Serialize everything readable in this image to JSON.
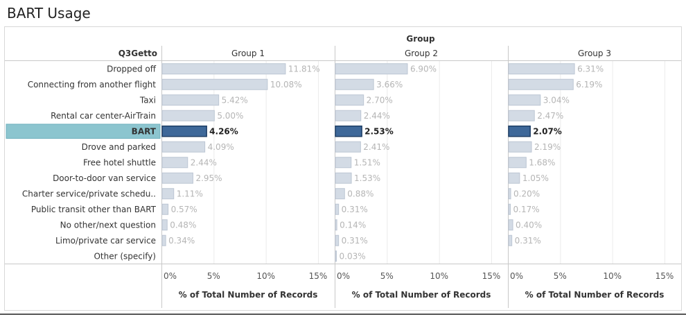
{
  "title": "BART Usage",
  "column_header": "Group",
  "row_header": "Q3Getto",
  "highlighted_category": "BART",
  "colors": {
    "bar": "#d3dbe5",
    "bar_border": "#bcc6d3",
    "bar_highlight": "#3e6899",
    "bar_highlight_border": "#1f3f66",
    "row_highlight": "#8cc5cf"
  },
  "chart_data": {
    "type": "bar",
    "orientation": "horizontal",
    "categories": [
      "Dropped off",
      "Connecting from another flight",
      "Taxi",
      "Rental car center-AirTrain",
      "BART",
      "Drove and parked",
      "Free hotel shuttle",
      "Door-to-door van service",
      "Charter service/private schedu..",
      "Public transit other than BART",
      "No other/next question",
      "Limo/private car service",
      "Other (specify)"
    ],
    "series": [
      {
        "name": "Group 1",
        "values": [
          11.81,
          10.08,
          5.42,
          5.0,
          4.26,
          4.09,
          2.44,
          2.95,
          1.11,
          0.57,
          0.48,
          0.34,
          null
        ],
        "labels": [
          "11.81%",
          "10.08%",
          "5.42%",
          "5.00%",
          "4.26%",
          "4.09%",
          "2.44%",
          "2.95%",
          "1.11%",
          "0.57%",
          "0.48%",
          "0.34%",
          ""
        ]
      },
      {
        "name": "Group 2",
        "values": [
          6.9,
          3.66,
          2.7,
          2.44,
          2.53,
          2.41,
          1.51,
          1.53,
          0.88,
          0.31,
          0.14,
          0.31,
          0.03
        ],
        "labels": [
          "6.90%",
          "3.66%",
          "2.70%",
          "2.44%",
          "2.53%",
          "2.41%",
          "1.51%",
          "1.53%",
          "0.88%",
          "0.31%",
          "0.14%",
          "0.31%",
          "0.03%"
        ]
      },
      {
        "name": "Group 3",
        "values": [
          6.31,
          6.19,
          3.04,
          2.47,
          2.07,
          2.19,
          1.68,
          1.05,
          0.2,
          0.17,
          0.4,
          0.31,
          null
        ],
        "labels": [
          "6.31%",
          "6.19%",
          "3.04%",
          "2.47%",
          "2.07%",
          "2.19%",
          "1.68%",
          "1.05%",
          "0.20%",
          "0.17%",
          "0.40%",
          "0.31%",
          ""
        ]
      }
    ],
    "xlabel": "% of Total Number of Records",
    "xlim": [
      0,
      15
    ],
    "xticks": [
      "0%",
      "5%",
      "10%",
      "15%"
    ],
    "grid": true
  }
}
